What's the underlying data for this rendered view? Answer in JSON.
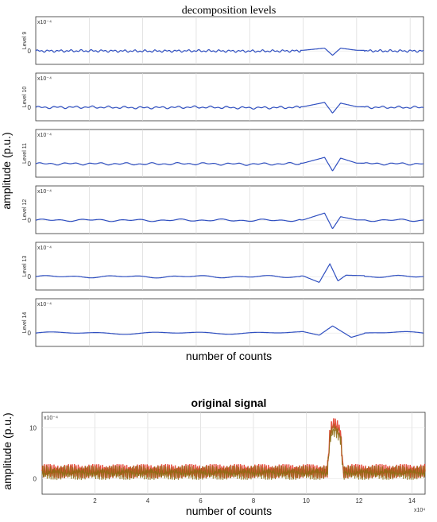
{
  "figure": {
    "top_title": "decomposition levels",
    "top_xlabel": "number of counts",
    "top_ylabel": "amplitude (p.u.)",
    "bottom_title": "original signal",
    "bottom_xlabel": "number of counts",
    "bottom_ylabel": "amplitude (p.u.)"
  },
  "chart_data": [
    {
      "type": "line",
      "title": "decomposition levels",
      "xlabel": "number of counts",
      "ylabel": "amplitude (p.u.)",
      "xlim": [
        0,
        145000
      ],
      "x_tick_marks": [
        20000,
        40000,
        60000,
        80000,
        100000,
        120000,
        140000
      ],
      "grid": true,
      "line_color": "#2f4fc0",
      "panels": [
        {
          "label": "Level 9",
          "scale_label": "x10⁻⁴",
          "zero_label": "0",
          "series": [
            {
              "x": [
                0,
                20000,
                40000,
                60000,
                80000,
                100000,
                108000,
                111000,
                114000,
                120000,
                145000
              ],
              "y": [
                0,
                0.1,
                -0.1,
                0.1,
                -0.1,
                0.1,
                0.4,
                -0.6,
                0.4,
                0.1,
                0
              ]
            }
          ]
        },
        {
          "label": "Level 10",
          "scale_label": "x10⁻⁴",
          "zero_label": "0",
          "series": [
            {
              "x": [
                0,
                20000,
                40000,
                60000,
                80000,
                100000,
                108000,
                111000,
                114000,
                120000,
                145000
              ],
              "y": [
                0,
                0.2,
                -0.2,
                0.2,
                -0.3,
                0.1,
                0.7,
                -0.8,
                0.6,
                0.1,
                0
              ]
            }
          ]
        },
        {
          "label": "Level 11",
          "scale_label": "x10⁻⁴",
          "zero_label": "0",
          "series": [
            {
              "x": [
                0,
                20000,
                40000,
                60000,
                80000,
                100000,
                108000,
                111000,
                114000,
                120000,
                145000
              ],
              "y": [
                0,
                0.1,
                -0.1,
                0.1,
                -0.2,
                0.1,
                0.9,
                -1.0,
                0.8,
                0.1,
                0
              ]
            }
          ]
        },
        {
          "label": "Level 12",
          "scale_label": "x10⁻⁴",
          "zero_label": "0",
          "series": [
            {
              "x": [
                0,
                20000,
                40000,
                60000,
                80000,
                100000,
                108000,
                111000,
                114000,
                120000,
                145000
              ],
              "y": [
                0,
                0.1,
                -0.1,
                0.1,
                -0.1,
                0.05,
                1.0,
                -1.2,
                0.5,
                0.05,
                0
              ]
            }
          ]
        },
        {
          "label": "Level 13",
          "scale_label": "x10⁻⁴",
          "zero_label": "0",
          "series": [
            {
              "x": [
                0,
                20000,
                40000,
                60000,
                80000,
                100000,
                106000,
                110000,
                113000,
                116000,
                145000
              ],
              "y": [
                0,
                0.05,
                -0.05,
                0.05,
                -0.05,
                0.1,
                -0.8,
                1.8,
                -0.6,
                0.2,
                0
              ]
            }
          ]
        },
        {
          "label": "Level 14",
          "scale_label": "x10⁻⁴",
          "zero_label": "0",
          "series": [
            {
              "x": [
                0,
                20000,
                40000,
                60000,
                80000,
                100000,
                106000,
                111000,
                118000,
                127000,
                145000
              ],
              "y": [
                0,
                0.05,
                -0.05,
                0.05,
                0.1,
                0.2,
                -0.3,
                1.0,
                -0.6,
                0.4,
                0
              ]
            }
          ]
        }
      ]
    },
    {
      "type": "line",
      "title": "original signal",
      "xlabel": "number of counts",
      "ylabel": "amplitude (p.u.)",
      "xlim": [
        0,
        145000
      ],
      "ylim": [
        -3,
        13
      ],
      "x_ticks": [
        2,
        4,
        6,
        8,
        10,
        12,
        14
      ],
      "x_multiplier": "x10⁴",
      "y_ticks": [
        0,
        10
      ],
      "y_multiplier": "x10⁻⁴",
      "grid": true,
      "series": [
        {
          "color": "#e0301e",
          "x": [
            0,
            20000,
            40000,
            60000,
            80000,
            100000,
            108000,
            109000,
            110000,
            111000,
            112000,
            113000,
            114000,
            120000,
            130000,
            145000
          ],
          "y": [
            1.5,
            1.5,
            1.5,
            1.5,
            1.5,
            1.5,
            1.5,
            9.0,
            10.5,
            10.5,
            10.0,
            9.0,
            1.5,
            1.5,
            1.5,
            1.5
          ]
        },
        {
          "color": "#8a6a10",
          "x": [
            0,
            20000,
            40000,
            60000,
            80000,
            100000,
            108000,
            109000,
            110000,
            111000,
            112000,
            113000,
            114000,
            120000,
            130000,
            145000
          ],
          "y": [
            1.2,
            1.2,
            1.2,
            1.2,
            1.2,
            1.2,
            1.2,
            8.0,
            9.5,
            9.5,
            9.0,
            8.0,
            1.2,
            1.2,
            1.2,
            1.2
          ]
        }
      ]
    }
  ]
}
